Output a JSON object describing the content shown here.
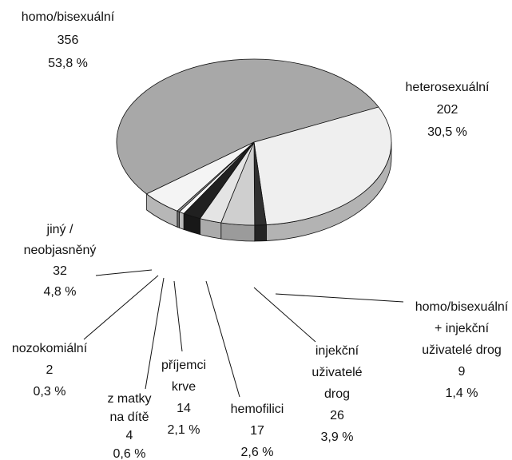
{
  "chart_data": {
    "type": "pie",
    "categories": [
      [
        "homo/bisexuální"
      ],
      [
        "heterosexuální"
      ],
      [
        "homo/bisexuální",
        "+ injekční",
        "uživatelé drog"
      ],
      [
        "injekční",
        "uživatelé",
        "drog"
      ],
      [
        "hemofilici"
      ],
      [
        "příjemci",
        "krve"
      ],
      [
        "z matky",
        "na dítě"
      ],
      [
        "nozokomiální"
      ],
      [
        "jiný /",
        "neobjasněný"
      ]
    ],
    "values": [
      356,
      202,
      9,
      26,
      17,
      14,
      4,
      2,
      32
    ],
    "percents": [
      53.8,
      30.5,
      1.4,
      3.9,
      2.6,
      2.1,
      0.6,
      0.3,
      4.8
    ],
    "percent_labels": [
      "53,8 %",
      "30,5 %",
      "1,4 %",
      "3,9 %",
      "2,6 %",
      "2,1 %",
      "0,6 %",
      "0,3 %",
      "4,8 %"
    ],
    "colors": [
      "#a8a8a8",
      "#efefef",
      "#303030",
      "#cfcfcf",
      "#e4e4e4",
      "#202020",
      "#fafafa",
      "#909090",
      "#f4f4f4"
    ]
  }
}
